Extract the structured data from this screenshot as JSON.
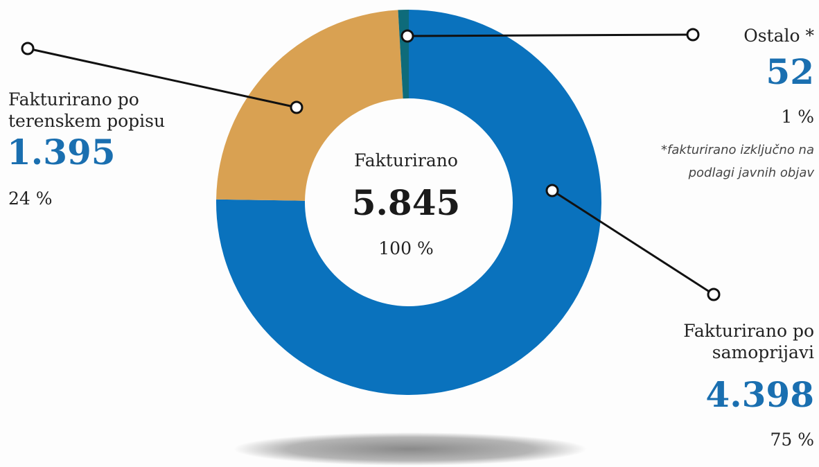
{
  "chart_data": {
    "type": "pie",
    "donut": true,
    "categories": [
      "Fakturirano po samoprijavi",
      "Fakturirano po terenskem popisu",
      "Ostalo *"
    ],
    "values": [
      4398,
      1395,
      52
    ],
    "value_labels": [
      "4.398",
      "1.395",
      "52"
    ],
    "percent_labels": [
      "75 %",
      "24 %",
      "1 %"
    ],
    "colors": [
      "#0a72bd",
      "#d9a152",
      "#0e6b7a"
    ],
    "center": {
      "title": "Fakturirano",
      "value": 5845,
      "value_label": "5.845",
      "percent_label": "100 %"
    },
    "note": "*fakturirano izključno na podlagi javnih objav"
  }
}
